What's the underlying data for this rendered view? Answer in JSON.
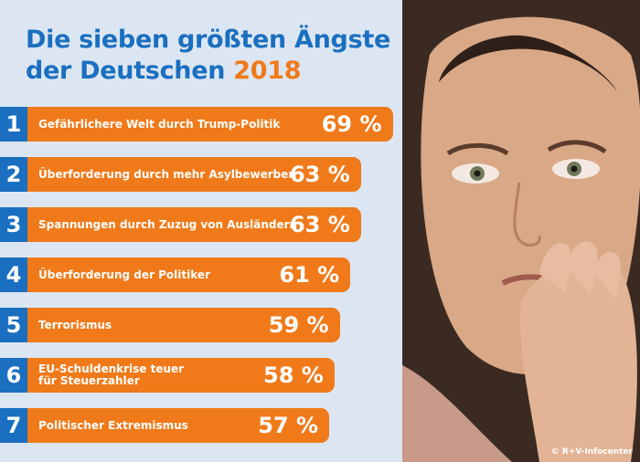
{
  "title": {
    "line1": "Die sieben größten Ängste",
    "line2_prefix": "der Deutschen",
    "line2_year": "2018"
  },
  "credit": "© R+V-Infocenter",
  "colors": {
    "accent_blue": "#1a6fc0",
    "bar_orange": "#f07a1a",
    "background": "#dce6f2"
  },
  "chart_data": {
    "type": "bar",
    "orientation": "horizontal",
    "title": "Die sieben größten Ängste der Deutschen 2018",
    "unit": "%",
    "ranks": [
      "1",
      "2",
      "3",
      "4",
      "5",
      "6",
      "7"
    ],
    "categories": [
      "Gefährlichere Welt durch Trump-Politik",
      "Überforderung durch mehr Asylbewerber",
      "Spannungen durch Zuzug von Ausländern",
      "Überforderung der Politiker",
      "Terrorismus",
      "EU-Schuldenkrise teuer\nfür Steuerzahler",
      "Politischer Extremismus"
    ],
    "values": [
      69,
      63,
      63,
      61,
      59,
      58,
      57
    ],
    "value_labels": [
      "69 %",
      "63 %",
      "63 %",
      "61 %",
      "59 %",
      "58 %",
      "57 %"
    ]
  }
}
